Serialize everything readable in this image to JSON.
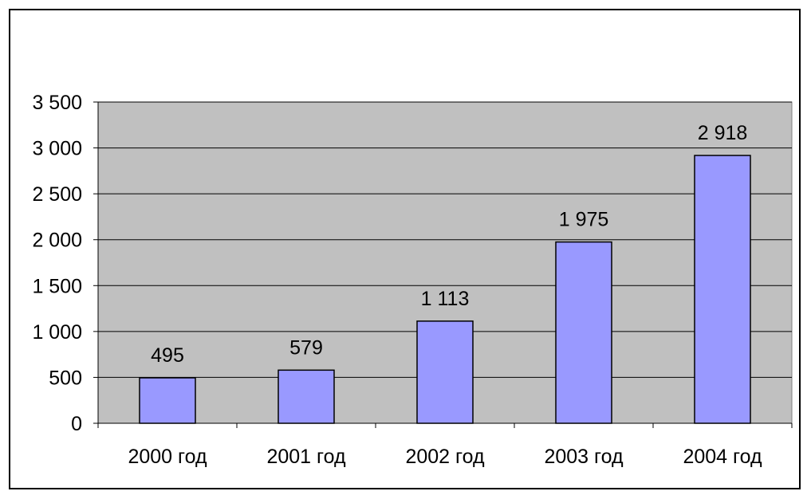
{
  "chart_data": {
    "type": "bar",
    "title": "",
    "xlabel": "",
    "ylabel": "",
    "categories": [
      "2000 год",
      "2001 год",
      "2002 год",
      "2003 год",
      "2004 год"
    ],
    "values": [
      495,
      579,
      1113,
      1975,
      2918
    ],
    "data_labels": [
      "495",
      "579",
      "1 113",
      "1 975",
      "2 918"
    ],
    "ylim": [
      0,
      3500
    ],
    "yticks": [
      0,
      500,
      1000,
      1500,
      2000,
      2500,
      3000,
      3500
    ],
    "ytick_labels": [
      "0",
      "500",
      "1 000",
      "1 500",
      "2 000",
      "2 500",
      "3 000",
      "3 500"
    ],
    "grid": true,
    "legend": "none",
    "colors": {
      "bar_fill": "#9999ff",
      "bar_stroke": "#000000",
      "plot_background": "#c0c0c0",
      "gridline": "#000000"
    }
  }
}
